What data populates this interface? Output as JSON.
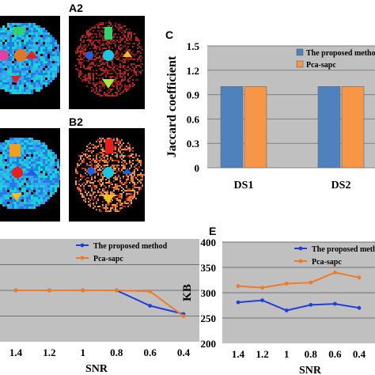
{
  "panels": {
    "a2": {
      "letter": "A2"
    },
    "b2": {
      "letter": "B2"
    },
    "c": {
      "letter": "C"
    },
    "e": {
      "letter": "E"
    }
  },
  "brain_colors": {
    "background": "#000000",
    "blue_noise": "#1e7fe0",
    "cyan_noise": "#19d4d4",
    "red_noise": "#c0281c",
    "orange_noise": "#e0782a",
    "green": "#2cd46a",
    "red": "#e61e1e",
    "magenta": "#e040a0",
    "yellow": "#f0c020",
    "blue": "#2060e0"
  },
  "chart_data": [
    {
      "id": "C",
      "type": "bar",
      "categories": [
        "DS1",
        "DS2"
      ],
      "series": [
        {
          "name": "The proposed method",
          "color": "#4f81bd",
          "values": [
            1,
            1
          ]
        },
        {
          "name": "Pca-sapc",
          "color": "#f79646",
          "values": [
            1,
            1
          ]
        }
      ],
      "ylabel": "Jaccard coefficient",
      "ylim": [
        0,
        1.5
      ],
      "yticks": [
        "0",
        "0.3",
        "0.6",
        "0.9",
        "1.2",
        "1.5"
      ],
      "grid": true,
      "legend": "top-right"
    },
    {
      "id": "D",
      "type": "line",
      "x": [
        "1.4",
        "1.2",
        "1",
        "0.8",
        "0.6",
        "0.4"
      ],
      "xlabel": "SNR",
      "series": [
        {
          "name": "The proposed method",
          "color": "#1f3fd8",
          "values": [
            0.5,
            0.5,
            0.5,
            0.5,
            0.35,
            0.27
          ]
        },
        {
          "name": "Pca-sapc",
          "color": "#f07a2a",
          "values": [
            0.5,
            0.5,
            0.5,
            0.5,
            0.49,
            0.25
          ]
        }
      ],
      "ylim": [
        0,
        1
      ],
      "legend": "top-right"
    },
    {
      "id": "E",
      "type": "line",
      "x": [
        "1.4",
        "1.2",
        "1",
        "0.8",
        "0.6",
        "0.4"
      ],
      "xlabel": "SNR",
      "ylabel": "KB",
      "ylim": [
        200,
        400
      ],
      "yticks": [
        "200",
        "250",
        "300",
        "350",
        "400"
      ],
      "series": [
        {
          "name": "The proposed method",
          "color": "#1f3fd8",
          "values": [
            281,
            285,
            265,
            276,
            278,
            270
          ]
        },
        {
          "name": "Pca-sapc",
          "color": "#f07a2a",
          "values": [
            313,
            310,
            318,
            320,
            340,
            330
          ]
        }
      ],
      "legend": "top-right"
    }
  ]
}
